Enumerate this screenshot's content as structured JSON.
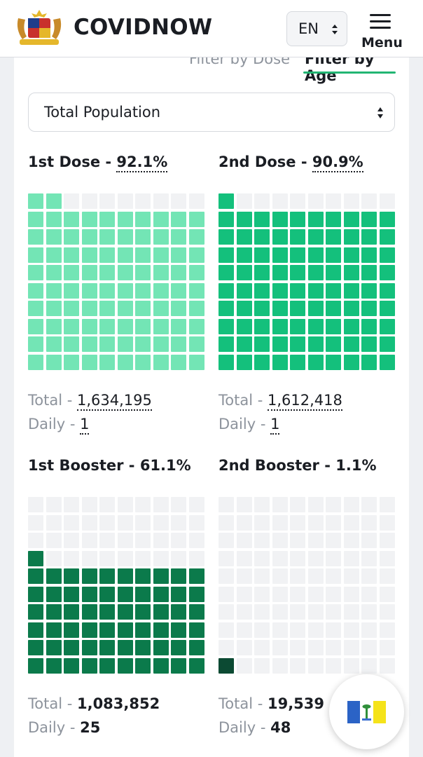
{
  "header": {
    "brand": "COVIDNOW",
    "logo_icon": "malaysia-coat-of-arms-icon",
    "language": "EN",
    "menu_label": "Menu"
  },
  "filters": {
    "tabs": [
      {
        "label": "Filter by Dose",
        "active": false
      },
      {
        "label": "Filter by Age",
        "active": true
      }
    ],
    "population_select": "Total Population",
    "accent_color": "#22b573"
  },
  "stats": [
    {
      "title": "1st Dose",
      "percent": "92.1%",
      "percent_value": 92.1,
      "total_label": "Total",
      "total": "1,634,195",
      "daily_label": "Daily",
      "daily": "1",
      "color": "#73e5b5"
    },
    {
      "title": "2nd Dose",
      "percent": "90.9%",
      "percent_value": 90.9,
      "total_label": "Total",
      "total": "1,612,418",
      "daily_label": "Daily",
      "daily": "1",
      "color": "#14c07c"
    },
    {
      "title": "1st Booster",
      "percent": "61.1%",
      "percent_value": 61.1,
      "total_label": "Total",
      "total": "1,083,852",
      "daily_label": "Daily",
      "daily": "25",
      "color": "#0b7a4b"
    },
    {
      "title": "2nd Booster",
      "percent": "1.1%",
      "percent_value": 1.1,
      "total_label": "Total",
      "total": "19,539",
      "daily_label": "Daily",
      "daily": "48",
      "color": "#0c4a33"
    }
  ],
  "empty_cell_color": "#f1f2f4",
  "fab": {
    "icon": "penang-flag-icon"
  }
}
